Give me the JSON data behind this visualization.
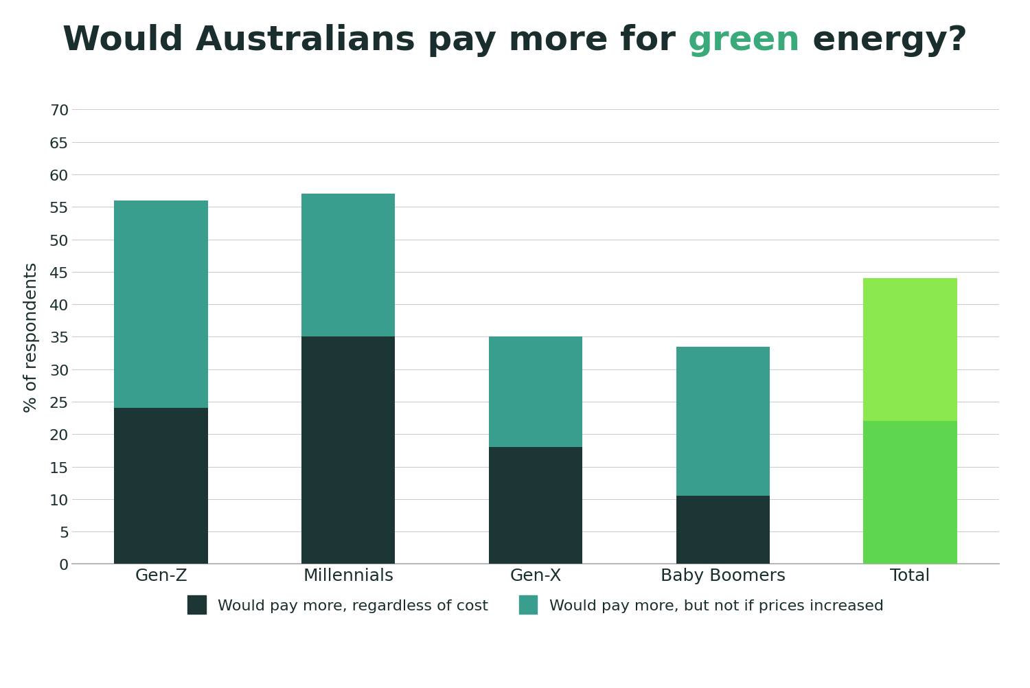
{
  "title_parts": [
    {
      "text": "Would Australians pay more for ",
      "color": "#1a2e2e"
    },
    {
      "text": "green",
      "color": "#3aaa7a"
    },
    {
      "text": " energy?",
      "color": "#1a2e2e"
    }
  ],
  "categories": [
    "Gen-Z",
    "Millennials",
    "Gen-X",
    "Baby Boomers",
    "Total"
  ],
  "bottom_values": [
    24,
    35,
    18,
    10.5,
    22
  ],
  "top_values": [
    32,
    22,
    17,
    23,
    22
  ],
  "colors_bottom": [
    "#1c3535",
    "#1c3535",
    "#1c3535",
    "#1c3535",
    "#5ed64e"
  ],
  "colors_top": [
    "#3a9e8e",
    "#3a9e8e",
    "#3a9e8e",
    "#3a9e8e",
    "#8be84e"
  ],
  "ylabel": "% of respondents",
  "ylim": [
    0,
    70
  ],
  "yticks": [
    0,
    5,
    10,
    15,
    20,
    25,
    30,
    35,
    40,
    45,
    50,
    55,
    60,
    65,
    70
  ],
  "legend": [
    {
      "label": "Would pay more, regardless of cost",
      "color": "#1c3535"
    },
    {
      "label": "Would pay more, but not if prices increased",
      "color": "#3a9e8e"
    }
  ],
  "background_color": "#ffffff",
  "grid_color": "#cccccc",
  "title_fontsize": 36,
  "axis_fontsize": 18,
  "tick_fontsize": 16,
  "legend_fontsize": 16,
  "bar_width": 0.5
}
